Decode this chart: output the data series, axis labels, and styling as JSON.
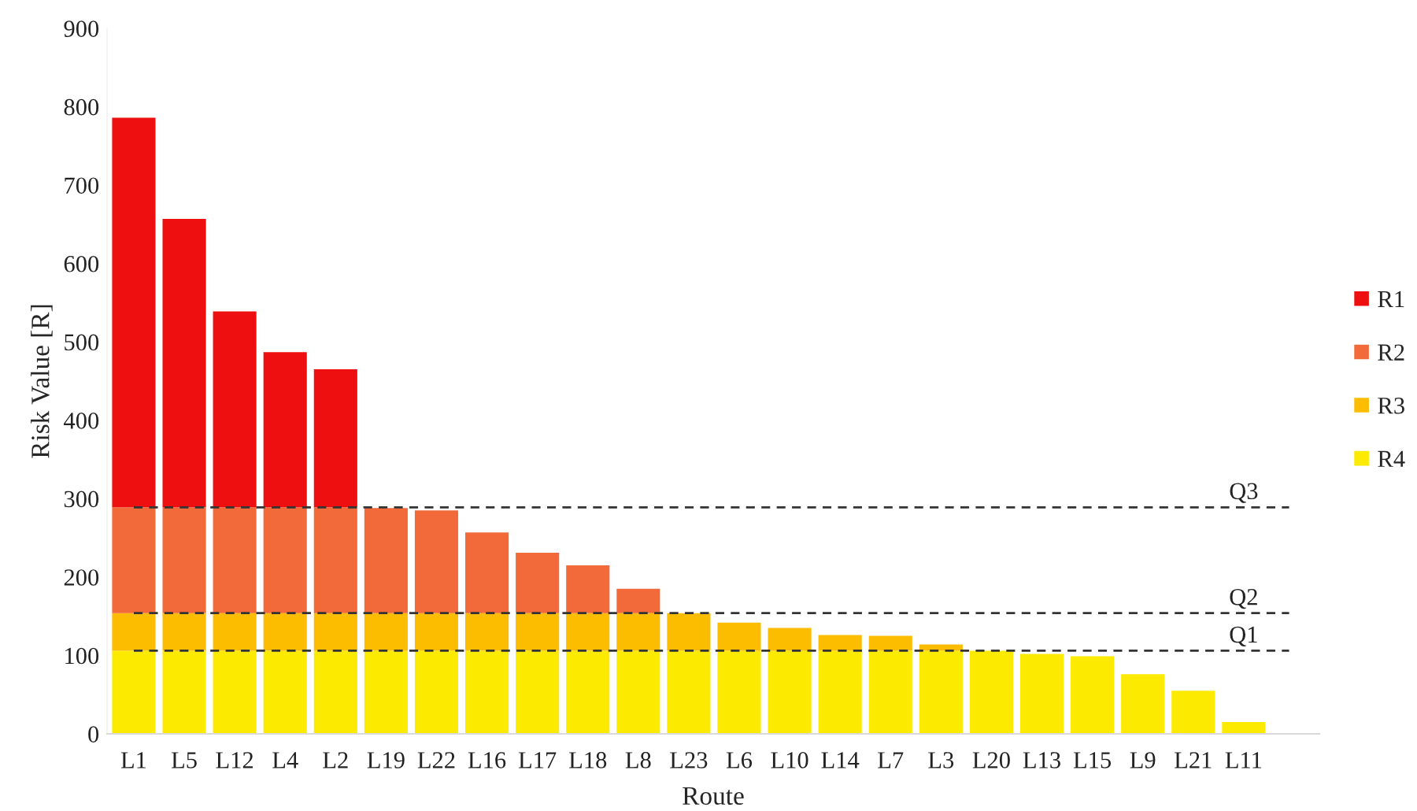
{
  "chart_data": {
    "type": "bar",
    "stacked": true,
    "xlabel": "Route",
    "ylabel": "Risk Value [R]",
    "categories": [
      "L1",
      "L5",
      "L12",
      "L4",
      "L2",
      "L19",
      "L22",
      "L16",
      "L17",
      "L18",
      "L8",
      "L23",
      "L6",
      "L10",
      "L14",
      "L7",
      "L3",
      "L20",
      "L13",
      "L15",
      "L9",
      "L21",
      "L11"
    ],
    "series": [
      {
        "name": "R4",
        "color": "#fcea00",
        "values": [
          106,
          106,
          106,
          106,
          106,
          106,
          106,
          106,
          106,
          106,
          106,
          106,
          106,
          106,
          106,
          106,
          106,
          106,
          102,
          99,
          76,
          55,
          15
        ]
      },
      {
        "name": "R3",
        "color": "#fcbc00",
        "values": [
          48,
          48,
          48,
          48,
          48,
          48,
          48,
          48,
          48,
          48,
          48,
          48,
          36,
          29,
          20,
          19,
          8,
          null,
          null,
          null,
          null,
          null,
          null
        ]
      },
      {
        "name": "R2",
        "color": "#f26a3a",
        "values": [
          135,
          135,
          135,
          135,
          135,
          134,
          131,
          103,
          77,
          61,
          31,
          null,
          null,
          null,
          null,
          null,
          null,
          null,
          null,
          null,
          null,
          null,
          null
        ]
      },
      {
        "name": "R1",
        "color": "#ee1010",
        "values": [
          497,
          368,
          250,
          198,
          176,
          null,
          null,
          null,
          null,
          null,
          null,
          null,
          null,
          null,
          null,
          null,
          null,
          null,
          null,
          null,
          null,
          null,
          null
        ]
      }
    ],
    "ylim": [
      0,
      900
    ],
    "yticks": [
      0,
      100,
      200,
      300,
      400,
      500,
      600,
      700,
      800,
      900
    ],
    "ref_lines": [
      {
        "axis": "y",
        "value": 289,
        "label": "Q3",
        "color": "#333333",
        "line_style": "dashed"
      },
      {
        "axis": "y",
        "value": 154,
        "label": "Q2",
        "color": "#333333",
        "line_style": "dashed"
      },
      {
        "axis": "y",
        "value": 106,
        "label": "Q1",
        "color": "#333333",
        "line_style": "dashed"
      }
    ],
    "legend": "right",
    "grid": false
  }
}
